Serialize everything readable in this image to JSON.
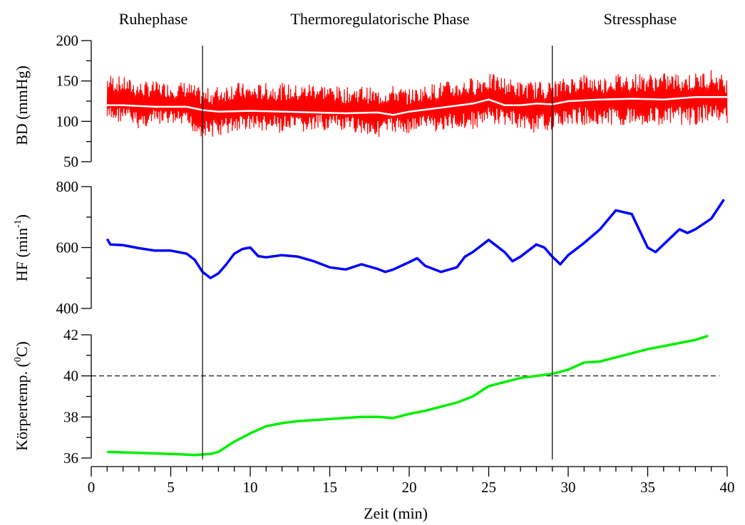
{
  "chart_data": [
    {
      "type": "line",
      "ylabel": "BD (mmHg)",
      "ylim": [
        50,
        200
      ],
      "yticks": [
        50,
        100,
        150,
        200
      ],
      "series": [
        {
          "color": "#ff0000",
          "style": "raw-noisy",
          "x": [
            1,
            2,
            3,
            4,
            5,
            6,
            7,
            8,
            9,
            10,
            11,
            12,
            13,
            14,
            15,
            16,
            17,
            18,
            19,
            20,
            21,
            22,
            23,
            24,
            25,
            26,
            27,
            28,
            29,
            30,
            31,
            32,
            33,
            34,
            35,
            36,
            37,
            38,
            39,
            40
          ],
          "upper": [
            160,
            155,
            150,
            150,
            148,
            150,
            140,
            145,
            150,
            145,
            148,
            148,
            145,
            150,
            145,
            142,
            145,
            140,
            145,
            140,
            145,
            150,
            150,
            155,
            160,
            155,
            150,
            150,
            150,
            155,
            160,
            155,
            160,
            160,
            160,
            160,
            160,
            160,
            165,
            155
          ],
          "lower": [
            95,
            100,
            90,
            95,
            95,
            90,
            80,
            80,
            85,
            90,
            85,
            85,
            85,
            85,
            90,
            85,
            85,
            80,
            85,
            85,
            90,
            85,
            90,
            90,
            95,
            95,
            90,
            85,
            90,
            95,
            95,
            95,
            95,
            95,
            95,
            95,
            95,
            95,
            100,
            95
          ]
        },
        {
          "color": "#ffffff",
          "style": "smoothed",
          "x": [
            0.5,
            2,
            4,
            6,
            7,
            8,
            10,
            12,
            14,
            16,
            18,
            19,
            20,
            22,
            24,
            25,
            26,
            27,
            28,
            29,
            30,
            32,
            34,
            36,
            38,
            40
          ],
          "y": [
            120,
            120,
            118,
            118,
            114,
            112,
            113,
            112,
            111,
            110,
            111,
            108,
            112,
            117,
            122,
            127,
            120,
            120,
            122,
            121,
            125,
            127,
            128,
            127,
            130,
            130
          ]
        }
      ]
    },
    {
      "type": "line",
      "ylabel": "HF (min⁻¹)",
      "ylim": [
        400,
        800
      ],
      "yticks": [
        400,
        600,
        800
      ],
      "series": [
        {
          "color": "#0000ff",
          "x": [
            1,
            1.2,
            2,
            3,
            4,
            5,
            6,
            6.5,
            7,
            7.5,
            8,
            8.5,
            9,
            9.5,
            10,
            10.5,
            11,
            12,
            13,
            14,
            15,
            16,
            17,
            18,
            18.5,
            19,
            20,
            20.5,
            21,
            22,
            23,
            23.5,
            24,
            25,
            26,
            26.5,
            27,
            28,
            28.5,
            29,
            29.5,
            30,
            31,
            32,
            33,
            34,
            35,
            35.5,
            36,
            37,
            37.5,
            38,
            39,
            39.8
          ],
          "y": [
            628,
            610,
            608,
            598,
            590,
            590,
            580,
            560,
            520,
            500,
            515,
            545,
            580,
            595,
            600,
            572,
            568,
            575,
            570,
            555,
            535,
            528,
            545,
            530,
            520,
            528,
            552,
            565,
            540,
            520,
            535,
            570,
            585,
            625,
            585,
            555,
            570,
            610,
            600,
            570,
            545,
            575,
            615,
            660,
            722,
            710,
            600,
            585,
            610,
            660,
            648,
            660,
            695,
            758
          ]
        }
      ]
    },
    {
      "type": "line",
      "ylabel": "Körpertemp. (°C)",
      "ylim": [
        36,
        42
      ],
      "yticks": [
        36,
        38,
        40,
        42
      ],
      "series": [
        {
          "color": "#00ee00",
          "x": [
            1,
            3,
            5,
            6.5,
            7.5,
            8,
            9,
            10,
            11,
            12,
            13,
            14,
            15,
            16,
            17,
            18,
            19,
            20,
            21,
            22,
            23,
            24,
            25,
            26,
            27,
            28,
            29,
            30,
            31,
            32,
            33,
            34,
            35,
            36,
            37,
            38,
            38.8
          ],
          "y": [
            36.3,
            36.25,
            36.2,
            36.15,
            36.2,
            36.3,
            36.8,
            37.2,
            37.55,
            37.7,
            37.8,
            37.85,
            37.9,
            37.95,
            38.0,
            38.0,
            37.95,
            38.15,
            38.3,
            38.5,
            38.7,
            39.0,
            39.5,
            39.7,
            39.9,
            40.0,
            40.1,
            40.3,
            40.65,
            40.7,
            40.9,
            41.1,
            41.3,
            41.45,
            41.6,
            41.75,
            41.95
          ]
        }
      ],
      "reference_line": {
        "y": 40,
        "style": "dashed"
      }
    }
  ],
  "xaxis": {
    "label": "Zeit (min)",
    "xlim": [
      0,
      40
    ],
    "ticks": [
      0,
      5,
      10,
      15,
      20,
      25,
      30,
      35,
      40
    ]
  },
  "phases": {
    "boundaries": [
      7,
      29
    ],
    "labels": [
      "Ruhephase",
      "Thermoregulatorische Phase",
      "Stressphase"
    ]
  },
  "labels": {
    "phase_rest": "Ruhephase",
    "phase_thermo": "Thermoregulatorische Phase",
    "phase_stress": "Stressphase",
    "xlabel": "Zeit (min)",
    "bd_ylabel": "BD (mmHg)",
    "hf_ylabel_main": "HF (min",
    "hf_ylabel_sup": "-1",
    "hf_ylabel_close": ")",
    "temp_ylabel_main": "Körpertemp. (",
    "temp_ylabel_sup": "0",
    "temp_ylabel_close": "C)"
  }
}
